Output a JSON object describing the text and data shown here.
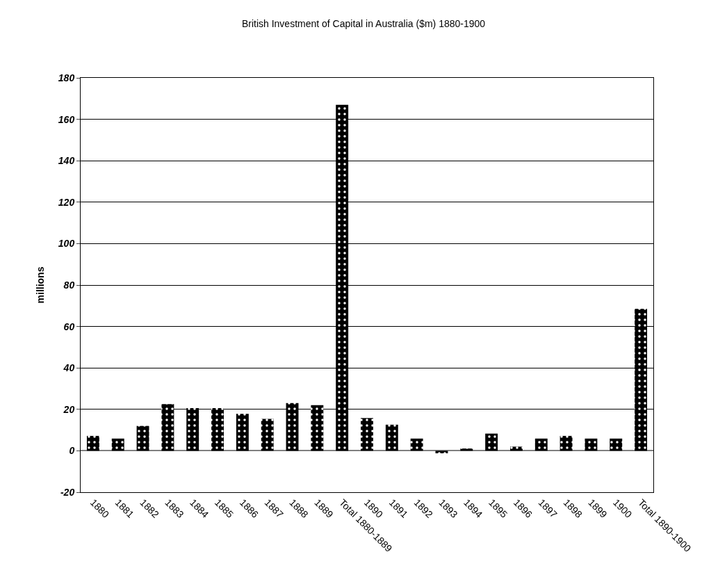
{
  "chart_data": {
    "type": "bar",
    "title": "British Investment of Capital in Australia ($m) 1880-1900",
    "ylabel": "millions",
    "categories": [
      "1880",
      "1881",
      "1882",
      "1883",
      "1884",
      "1885",
      "1886",
      "1887",
      "1888",
      "1889",
      "Total 1880-1889",
      "1890",
      "1891",
      "1892",
      "1893",
      "1894",
      "1895",
      "1896",
      "1897",
      "1898",
      "1899",
      "1900",
      "Total 1890-1900"
    ],
    "values": [
      7.2,
      5.9,
      12,
      22.5,
      20.6,
      20.6,
      17.8,
      15.4,
      23,
      22,
      167,
      15.8,
      12.6,
      5.9,
      -1.2,
      1.1,
      8.3,
      2,
      5.9,
      7.2,
      5.9,
      5.9,
      68.5
    ],
    "color": "#000000",
    "ylim": [
      -20,
      180
    ],
    "yticks": [
      -20,
      0,
      20,
      40,
      60,
      80,
      100,
      120,
      140,
      160,
      180
    ],
    "grid": "y",
    "legend": false
  }
}
